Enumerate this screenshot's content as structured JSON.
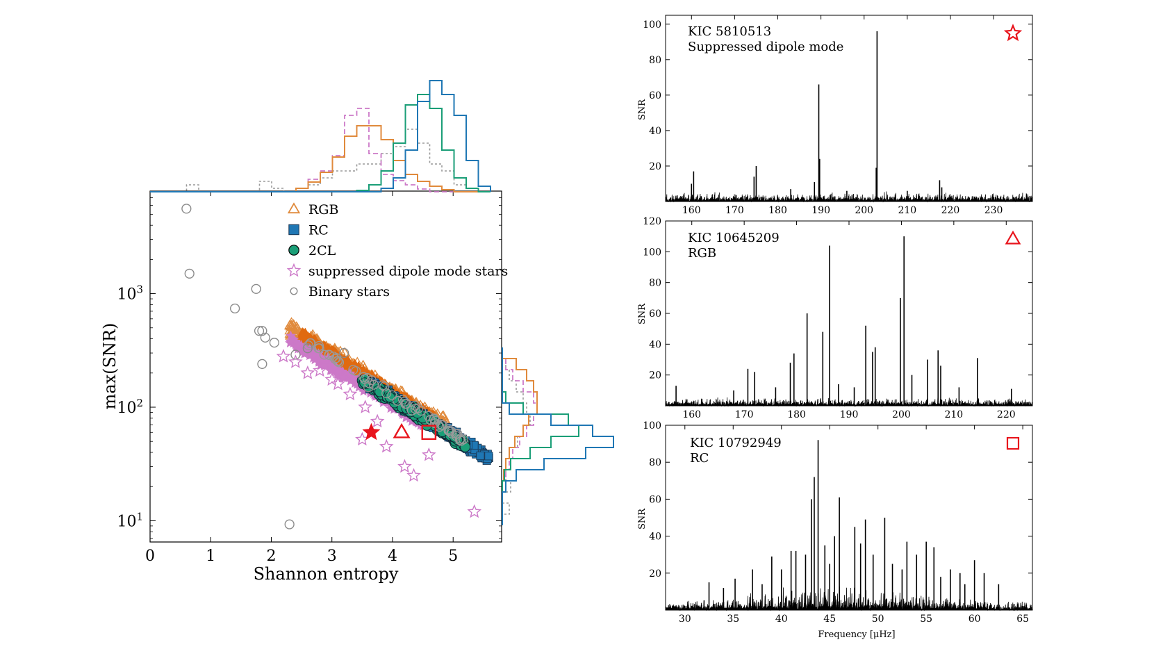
{
  "colors": {
    "rgb": "#e08a3c",
    "rgb_fill": "#e06a10",
    "rc": "#1f77b4",
    "rc_fill": "#5aa0d0",
    "twocl": "#1a9e77",
    "dipole": "#cc79c8",
    "binary": "#8a8a8a",
    "marker": "#e8141c"
  },
  "chart_data": [
    {
      "type": "scatter",
      "id": "main",
      "xlabel": "Shannon entropy",
      "ylabel": "max(SNR)",
      "xlim": [
        0,
        5.8
      ],
      "ylim": [
        6.5,
        8000
      ],
      "yscale": "log",
      "xticks": [
        "0",
        "1",
        "2",
        "3",
        "4",
        "5"
      ],
      "yticks": [
        {
          "base": "10",
          "exp": "1"
        },
        {
          "base": "10",
          "exp": "2"
        },
        {
          "base": "10",
          "exp": "3"
        }
      ],
      "legend": {
        "placement": "top",
        "entries": [
          {
            "label": "RGB",
            "marker": "triangle"
          },
          {
            "label": "RC",
            "marker": "square"
          },
          {
            "label": "2CL",
            "marker": "circle-filled"
          },
          {
            "label": "suppressed dipole mode stars",
            "marker": "star"
          },
          {
            "label": "Binary stars",
            "marker": "circle-open"
          }
        ]
      },
      "series": [
        {
          "name": "Binary stars",
          "marker": "circle-open",
          "points": [
            [
              0.6,
              5600
            ],
            [
              0.65,
              1500
            ],
            [
              1.4,
              740
            ],
            [
              1.75,
              1100
            ],
            [
              1.8,
              470
            ],
            [
              1.85,
              470
            ],
            [
              1.9,
              410
            ],
            [
              2.05,
              370
            ],
            [
              1.85,
              240
            ],
            [
              2.3,
              9.3
            ],
            [
              2.4,
              290
            ],
            [
              2.6,
              330
            ],
            [
              3.2,
              300
            ],
            [
              3.6,
              150
            ]
          ]
        },
        {
          "name": "suppressed dipole mode stars",
          "marker": "star",
          "points": [
            [
              2.2,
              280
            ],
            [
              2.4,
              250
            ],
            [
              2.6,
              200
            ],
            [
              3.0,
              175
            ],
            [
              3.3,
              130
            ],
            [
              3.55,
              100
            ],
            [
              3.75,
              75
            ],
            [
              3.5,
              52
            ],
            [
              3.9,
              45
            ],
            [
              4.2,
              30
            ],
            [
              4.6,
              38
            ],
            [
              4.35,
              25
            ],
            [
              5.35,
              12
            ],
            [
              3.1,
              160
            ],
            [
              2.8,
              210
            ]
          ]
        }
      ],
      "markers": [
        {
          "star": "KIC 5810513",
          "marker": "star",
          "x": 3.65,
          "y": 60
        },
        {
          "star": "KIC 10645209",
          "marker": "triangle",
          "x": 4.15,
          "y": 60
        },
        {
          "star": "KIC 10792949",
          "marker": "square",
          "x": 4.6,
          "y": 60
        }
      ]
    },
    {
      "type": "line",
      "id": "spec1",
      "title": "KIC 5810513",
      "subtitle": "Suppressed dipole mode",
      "xlabel": "",
      "ylabel": "SNR",
      "xlim": [
        154,
        239
      ],
      "ylim": [
        0,
        105
      ],
      "xticks": [
        160,
        170,
        180,
        190,
        200,
        210,
        220,
        230
      ],
      "yticks": [
        20,
        40,
        60,
        80,
        100
      ],
      "marker": "star",
      "peaks": [
        [
          160.5,
          17
        ],
        [
          175,
          20
        ],
        [
          188.5,
          11
        ],
        [
          189.5,
          66
        ],
        [
          189.7,
          24
        ],
        [
          203,
          96
        ],
        [
          202.8,
          19
        ],
        [
          217.5,
          12
        ],
        [
          160,
          10
        ],
        [
          174.5,
          14
        ],
        [
          218,
          8
        ],
        [
          183,
          7
        ],
        [
          196,
          6
        ],
        [
          210,
          6
        ]
      ]
    },
    {
      "type": "line",
      "id": "spec2",
      "title": "KIC 10645209",
      "subtitle": "RGB",
      "xlabel": "",
      "ylabel": "SNR",
      "xlim": [
        155,
        225
      ],
      "ylim": [
        0,
        120
      ],
      "xticks": [
        160,
        170,
        180,
        190,
        200,
        210,
        220
      ],
      "yticks": [
        20,
        40,
        60,
        80,
        100,
        120
      ],
      "marker": "triangle",
      "peaks": [
        [
          157,
          13
        ],
        [
          170.7,
          24
        ],
        [
          172,
          22
        ],
        [
          178.8,
          28
        ],
        [
          179.5,
          34
        ],
        [
          182,
          60
        ],
        [
          185,
          48
        ],
        [
          186.3,
          104
        ],
        [
          193.2,
          52
        ],
        [
          194.5,
          35
        ],
        [
          195,
          38
        ],
        [
          200.5,
          110
        ],
        [
          199.8,
          70
        ],
        [
          205,
          30
        ],
        [
          207,
          36
        ],
        [
          207.5,
          26
        ],
        [
          214.5,
          31
        ],
        [
          221,
          11
        ],
        [
          168,
          10
        ],
        [
          176,
          12
        ],
        [
          188,
          14
        ],
        [
          191,
          12
        ],
        [
          202,
          20
        ],
        [
          211,
          12
        ]
      ]
    },
    {
      "type": "line",
      "id": "spec3",
      "title": "KIC 10792949",
      "subtitle": "RC",
      "xlabel": "Frequency [μHz]",
      "ylabel": "SNR",
      "xlim": [
        28,
        66
      ],
      "ylim": [
        0,
        100
      ],
      "xticks": [
        30,
        35,
        40,
        45,
        50,
        55,
        60,
        65
      ],
      "yticks": [
        20,
        40,
        60,
        80,
        100
      ],
      "marker": "square",
      "peaks": [
        [
          32.5,
          15
        ],
        [
          35.2,
          17
        ],
        [
          37,
          22
        ],
        [
          39,
          29
        ],
        [
          40,
          22
        ],
        [
          41,
          32
        ],
        [
          41.5,
          32
        ],
        [
          42.5,
          30
        ],
        [
          43.1,
          60
        ],
        [
          43.4,
          72
        ],
        [
          43.8,
          92
        ],
        [
          45,
          25
        ],
        [
          46,
          61
        ],
        [
          47.6,
          45
        ],
        [
          48.2,
          36
        ],
        [
          48.7,
          49
        ],
        [
          49.5,
          30
        ],
        [
          50.7,
          50
        ],
        [
          53,
          37
        ],
        [
          54,
          30
        ],
        [
          55,
          37
        ],
        [
          55.8,
          34
        ],
        [
          57.5,
          22
        ],
        [
          58.5,
          20
        ],
        [
          60,
          27
        ],
        [
          61,
          20
        ],
        [
          62.5,
          14
        ],
        [
          34,
          12
        ],
        [
          38,
          14
        ],
        [
          44.5,
          35
        ],
        [
          45.5,
          40
        ],
        [
          51.5,
          25
        ],
        [
          52.5,
          22
        ],
        [
          56.5,
          18
        ],
        [
          59,
          14
        ]
      ]
    }
  ]
}
